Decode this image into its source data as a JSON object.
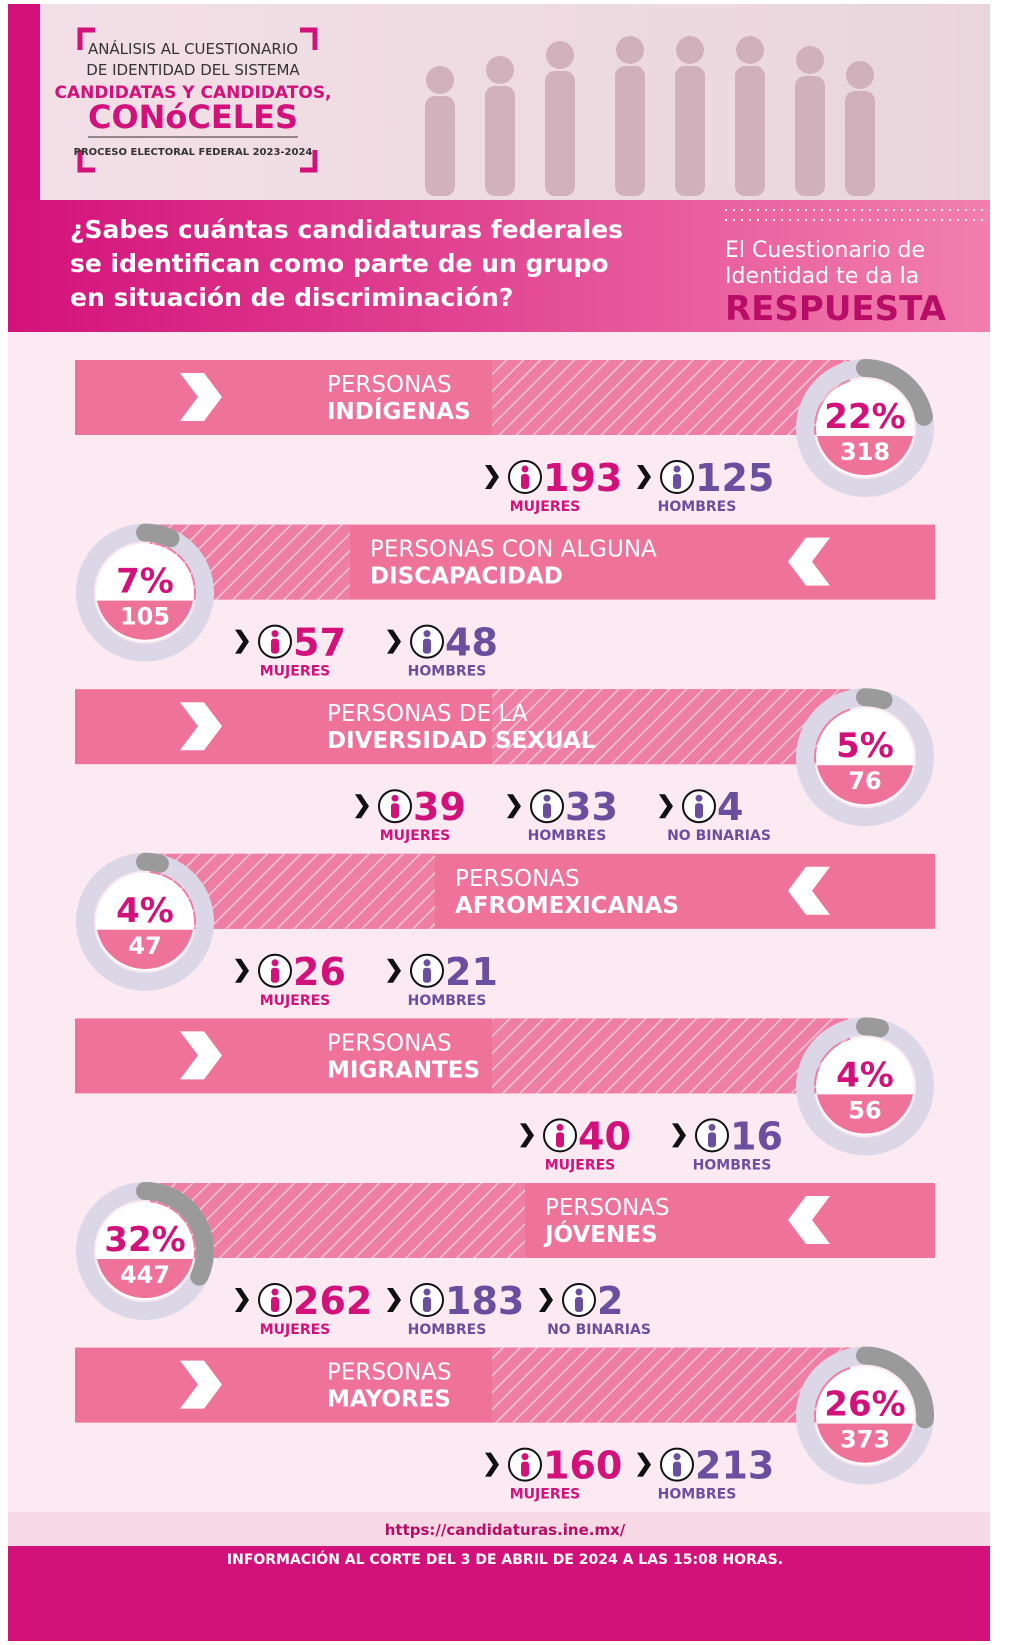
{
  "header": {
    "line1": "ANÁLISIS AL CUESTIONARIO",
    "line2": "DE IDENTIDAD DEL SISTEMA",
    "line3": "CANDIDATAS Y CANDIDATOS,",
    "line4": "CONóCELES",
    "line5": "PROCESO ELECTORAL FEDERAL 2023-2024"
  },
  "banner": {
    "question": [
      "¿Sabes cuántas candidaturas federales",
      "se identifican como parte de un grupo",
      "en situación de discriminación?"
    ],
    "answer": [
      "El Cuestionario de",
      "Identidad te da la"
    ],
    "answer_emphasis": "RESPUESTA"
  },
  "groups": [
    {
      "title": [
        "PERSONAS",
        "INDÍGENAS"
      ],
      "percent": {
        "value": 22,
        "label": "22%"
      },
      "total": 318,
      "stats": [
        {
          "value": 193,
          "label": "MUJERES"
        },
        {
          "value": 125,
          "label": "HOMBRES"
        }
      ]
    },
    {
      "title": [
        "PERSONAS CON ALGUNA",
        "DISCAPACIDAD"
      ],
      "percent": {
        "value": 7,
        "label": "7%"
      },
      "total": 105,
      "stats": [
        {
          "value": 57,
          "label": "MUJERES"
        },
        {
          "value": 48,
          "label": "HOMBRES"
        }
      ]
    },
    {
      "title": [
        "PERSONAS DE LA",
        "DIVERSIDAD SEXUAL"
      ],
      "percent": {
        "value": 5,
        "label": "5%"
      },
      "total": 76,
      "stats": [
        {
          "value": 39,
          "label": "MUJERES"
        },
        {
          "value": 33,
          "label": "HOMBRES"
        },
        {
          "value": 4,
          "label": "NO BINARIAS"
        }
      ]
    },
    {
      "title": [
        "PERSONAS",
        "AFROMEXICANAS"
      ],
      "percent": {
        "value": 4,
        "label": "4%"
      },
      "total": 47,
      "stats": [
        {
          "value": 26,
          "label": "MUJERES"
        },
        {
          "value": 21,
          "label": "HOMBRES"
        }
      ]
    },
    {
      "title": [
        "PERSONAS",
        "MIGRANTES"
      ],
      "percent": {
        "value": 4,
        "label": "4%"
      },
      "total": 56,
      "stats": [
        {
          "value": 40,
          "label": "MUJERES"
        },
        {
          "value": 16,
          "label": "HOMBRES"
        }
      ]
    },
    {
      "title": [
        "PERSONAS",
        "JÓVENES"
      ],
      "percent": {
        "value": 32,
        "label": "32%"
      },
      "total": 447,
      "stats": [
        {
          "value": 262,
          "label": "MUJERES"
        },
        {
          "value": 183,
          "label": "HOMBRES"
        },
        {
          "value": 2,
          "label": "NO BINARIAS"
        }
      ]
    },
    {
      "title": [
        "PERSONAS",
        "MAYORES"
      ],
      "percent": {
        "value": 26,
        "label": "26%"
      },
      "total": 373,
      "stats": [
        {
          "value": 160,
          "label": "MUJERES"
        },
        {
          "value": 213,
          "label": "HOMBRES"
        }
      ]
    }
  ],
  "footer": {
    "url": "https://candidaturas.ine.mx/",
    "note": "INFORMACIÓN AL CORTE DEL 3 DE ABRIL DE 2024 A LAS 15:08 HORAS."
  }
}
